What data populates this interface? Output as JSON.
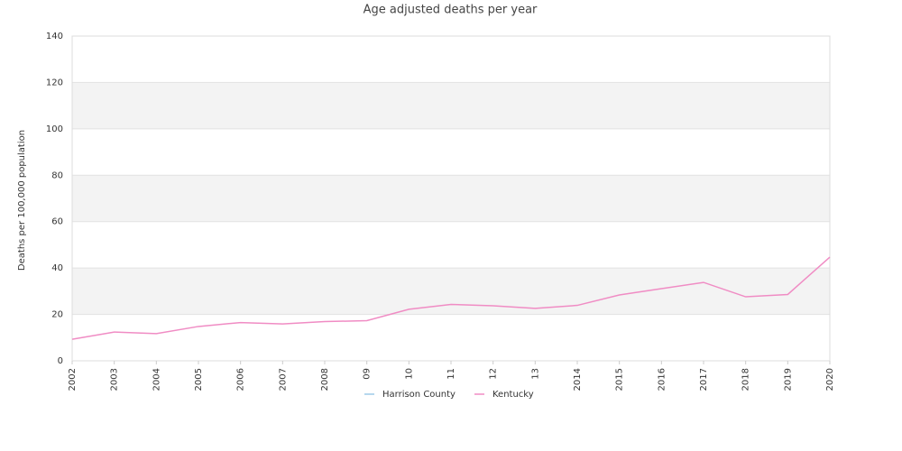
{
  "chart_data": {
    "type": "line",
    "title": "Age adjusted deaths per year",
    "y_label": "Deaths per 100,000 population",
    "categories": [
      "2002",
      "2003",
      "2004",
      "2005",
      "2006",
      "2007",
      "2008",
      "09",
      "10",
      "11",
      "12",
      "13",
      "2014",
      "2015",
      "2016",
      "2017",
      "2018",
      "2019",
      "2020"
    ],
    "series": [
      {
        "name": "Harrison County",
        "color": "#9ecae8",
        "values": [
          null,
          null,
          null,
          null,
          null,
          null,
          null,
          null,
          null,
          null,
          null,
          null,
          null,
          null,
          null,
          null,
          null,
          null,
          null
        ]
      },
      {
        "name": "Kentucky",
        "color": "#f08cc4",
        "values": [
          9.3,
          12.4,
          11.7,
          14.8,
          16.5,
          15.9,
          16.9,
          17.3,
          22.2,
          24.3,
          23.7,
          22.6,
          23.9,
          28.4,
          31.1,
          33.8,
          27.6,
          28.6,
          44.7
        ]
      }
    ],
    "ylim": [
      0,
      140
    ],
    "yticks": [
      0,
      20,
      40,
      60,
      80,
      100,
      120,
      140
    ],
    "grid": true,
    "legend": "bottom"
  }
}
